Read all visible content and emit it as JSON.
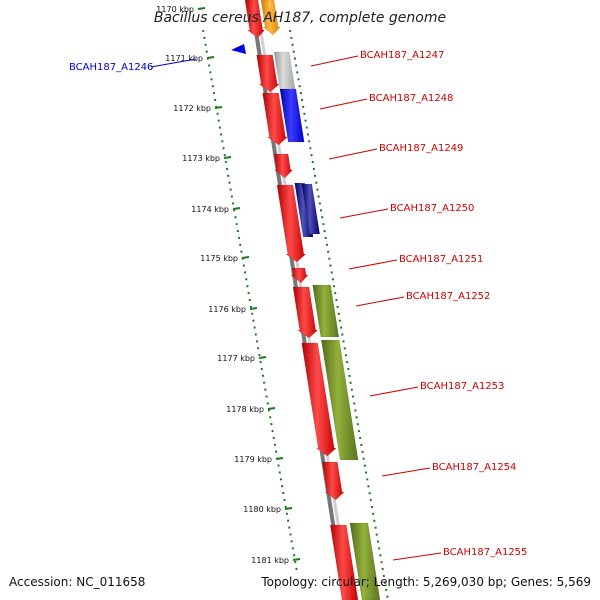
{
  "title": "Bacillus cereus AH187, complete genome",
  "footer": {
    "accession": "Accession: NC_011658",
    "summary": "Topology: circular; Length: 5,269,030 bp; Genes: 5,569"
  },
  "colors": {
    "backbone": "#8a8a8a",
    "scale_ticks": "#1b7a1b",
    "gene_label": "#cc0000",
    "focus_gene_label": "#0000cc",
    "red_gene": "#ee0000",
    "olive_gene": "#6b8e23",
    "blue_gene": "#0000ee",
    "navy_gene": "#000080",
    "grey_gene": "#b4b4b4",
    "orange_gene": "#ff9900"
  },
  "scale_ticks": [
    {
      "label": "1170 kbp"
    },
    {
      "label": "1171 kbp"
    },
    {
      "label": "1172 kbp"
    },
    {
      "label": "1173 kbp"
    },
    {
      "label": "1174 kbp"
    },
    {
      "label": "1175 kbp"
    },
    {
      "label": "1176 kbp"
    },
    {
      "label": "1177 kbp"
    },
    {
      "label": "1178 kbp"
    },
    {
      "label": "1179 kbp"
    },
    {
      "label": "1180 kbp"
    },
    {
      "label": "1181 kbp"
    }
  ],
  "focus_gene": {
    "label": "BCAH187_A1246"
  },
  "genes": [
    {
      "label": "BCAH187_A1247"
    },
    {
      "label": "BCAH187_A1248"
    },
    {
      "label": "BCAH187_A1249"
    },
    {
      "label": "BCAH187_A1250"
    },
    {
      "label": "BCAH187_A1251"
    },
    {
      "label": "BCAH187_A1252"
    },
    {
      "label": "BCAH187_A1253"
    },
    {
      "label": "BCAH187_A1254"
    },
    {
      "label": "BCAH187_A1255"
    }
  ]
}
